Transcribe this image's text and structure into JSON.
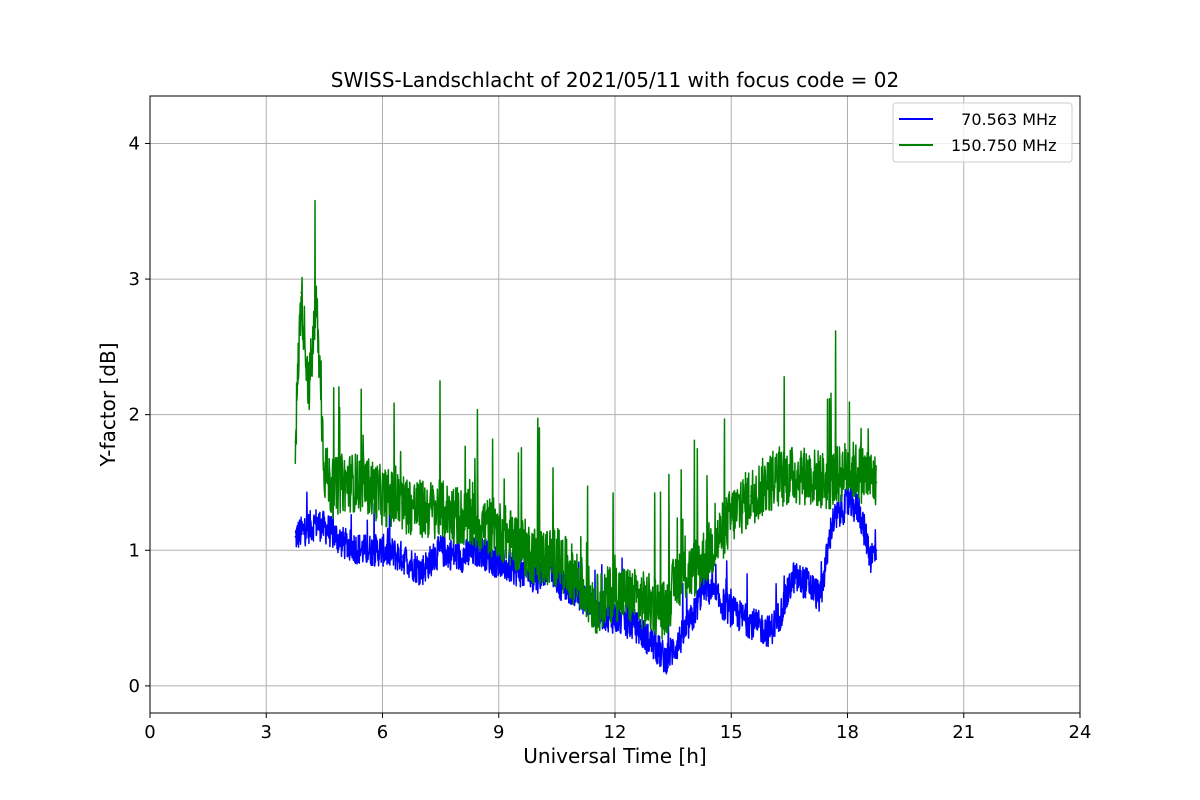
{
  "chart_data": {
    "type": "line",
    "title": "SWISS-Landschlacht of 2021/05/11 with focus code = 02",
    "xlabel": "Universal Time [h]",
    "ylabel": "Y-factor [dB]",
    "xlim": [
      0,
      24
    ],
    "ylim": [
      -0.2,
      4.35
    ],
    "xticks": [
      0,
      3,
      6,
      9,
      12,
      15,
      18,
      21,
      24
    ],
    "yticks": [
      0,
      1,
      2,
      3,
      4
    ],
    "grid": true,
    "legend_position": "top-right",
    "series": [
      {
        "name": "  70.563 MHz",
        "color": "#0000ff",
        "x": [
          3.75,
          4.0,
          4.3,
          4.6,
          5.0,
          5.5,
          6.0,
          6.5,
          7.0,
          7.5,
          8.0,
          8.5,
          9.0,
          9.5,
          10.0,
          10.3,
          10.6,
          11.0,
          11.5,
          12.0,
          12.5,
          13.0,
          13.3,
          13.6,
          14.0,
          14.3,
          14.6,
          15.0,
          15.3,
          15.6,
          16.0,
          16.3,
          16.6,
          17.0,
          17.3,
          17.6,
          18.0,
          18.3,
          18.6,
          18.75
        ],
        "y": [
          1.1,
          1.15,
          1.2,
          1.15,
          1.05,
          1.0,
          1.0,
          0.95,
          0.85,
          1.0,
          0.95,
          1.0,
          0.9,
          0.85,
          0.8,
          0.9,
          0.75,
          0.7,
          0.55,
          0.5,
          0.45,
          0.3,
          0.2,
          0.3,
          0.5,
          0.75,
          0.65,
          0.55,
          0.5,
          0.45,
          0.4,
          0.55,
          0.8,
          0.75,
          0.65,
          1.2,
          1.35,
          1.3,
          0.95,
          1.0
        ]
      },
      {
        "name": "150.750 MHz",
        "color": "#008000",
        "x": [
          3.75,
          3.9,
          4.1,
          4.3,
          4.5,
          4.7,
          5.0,
          5.5,
          6.0,
          6.5,
          7.0,
          7.5,
          8.0,
          8.5,
          9.0,
          9.5,
          10.0,
          10.5,
          11.0,
          11.5,
          12.0,
          12.5,
          13.0,
          13.3,
          13.6,
          14.0,
          14.3,
          14.6,
          15.0,
          15.5,
          16.0,
          16.5,
          17.0,
          17.5,
          18.0,
          18.5,
          18.75
        ],
        "y": [
          1.8,
          2.9,
          2.2,
          2.8,
          1.6,
          1.45,
          1.5,
          1.5,
          1.4,
          1.35,
          1.3,
          1.3,
          1.25,
          1.2,
          1.15,
          1.05,
          0.95,
          0.95,
          0.8,
          0.6,
          0.7,
          0.65,
          0.6,
          0.55,
          0.8,
          0.85,
          0.95,
          1.05,
          1.25,
          1.4,
          1.5,
          1.55,
          1.55,
          1.5,
          1.6,
          1.55,
          1.5
        ]
      }
    ]
  }
}
